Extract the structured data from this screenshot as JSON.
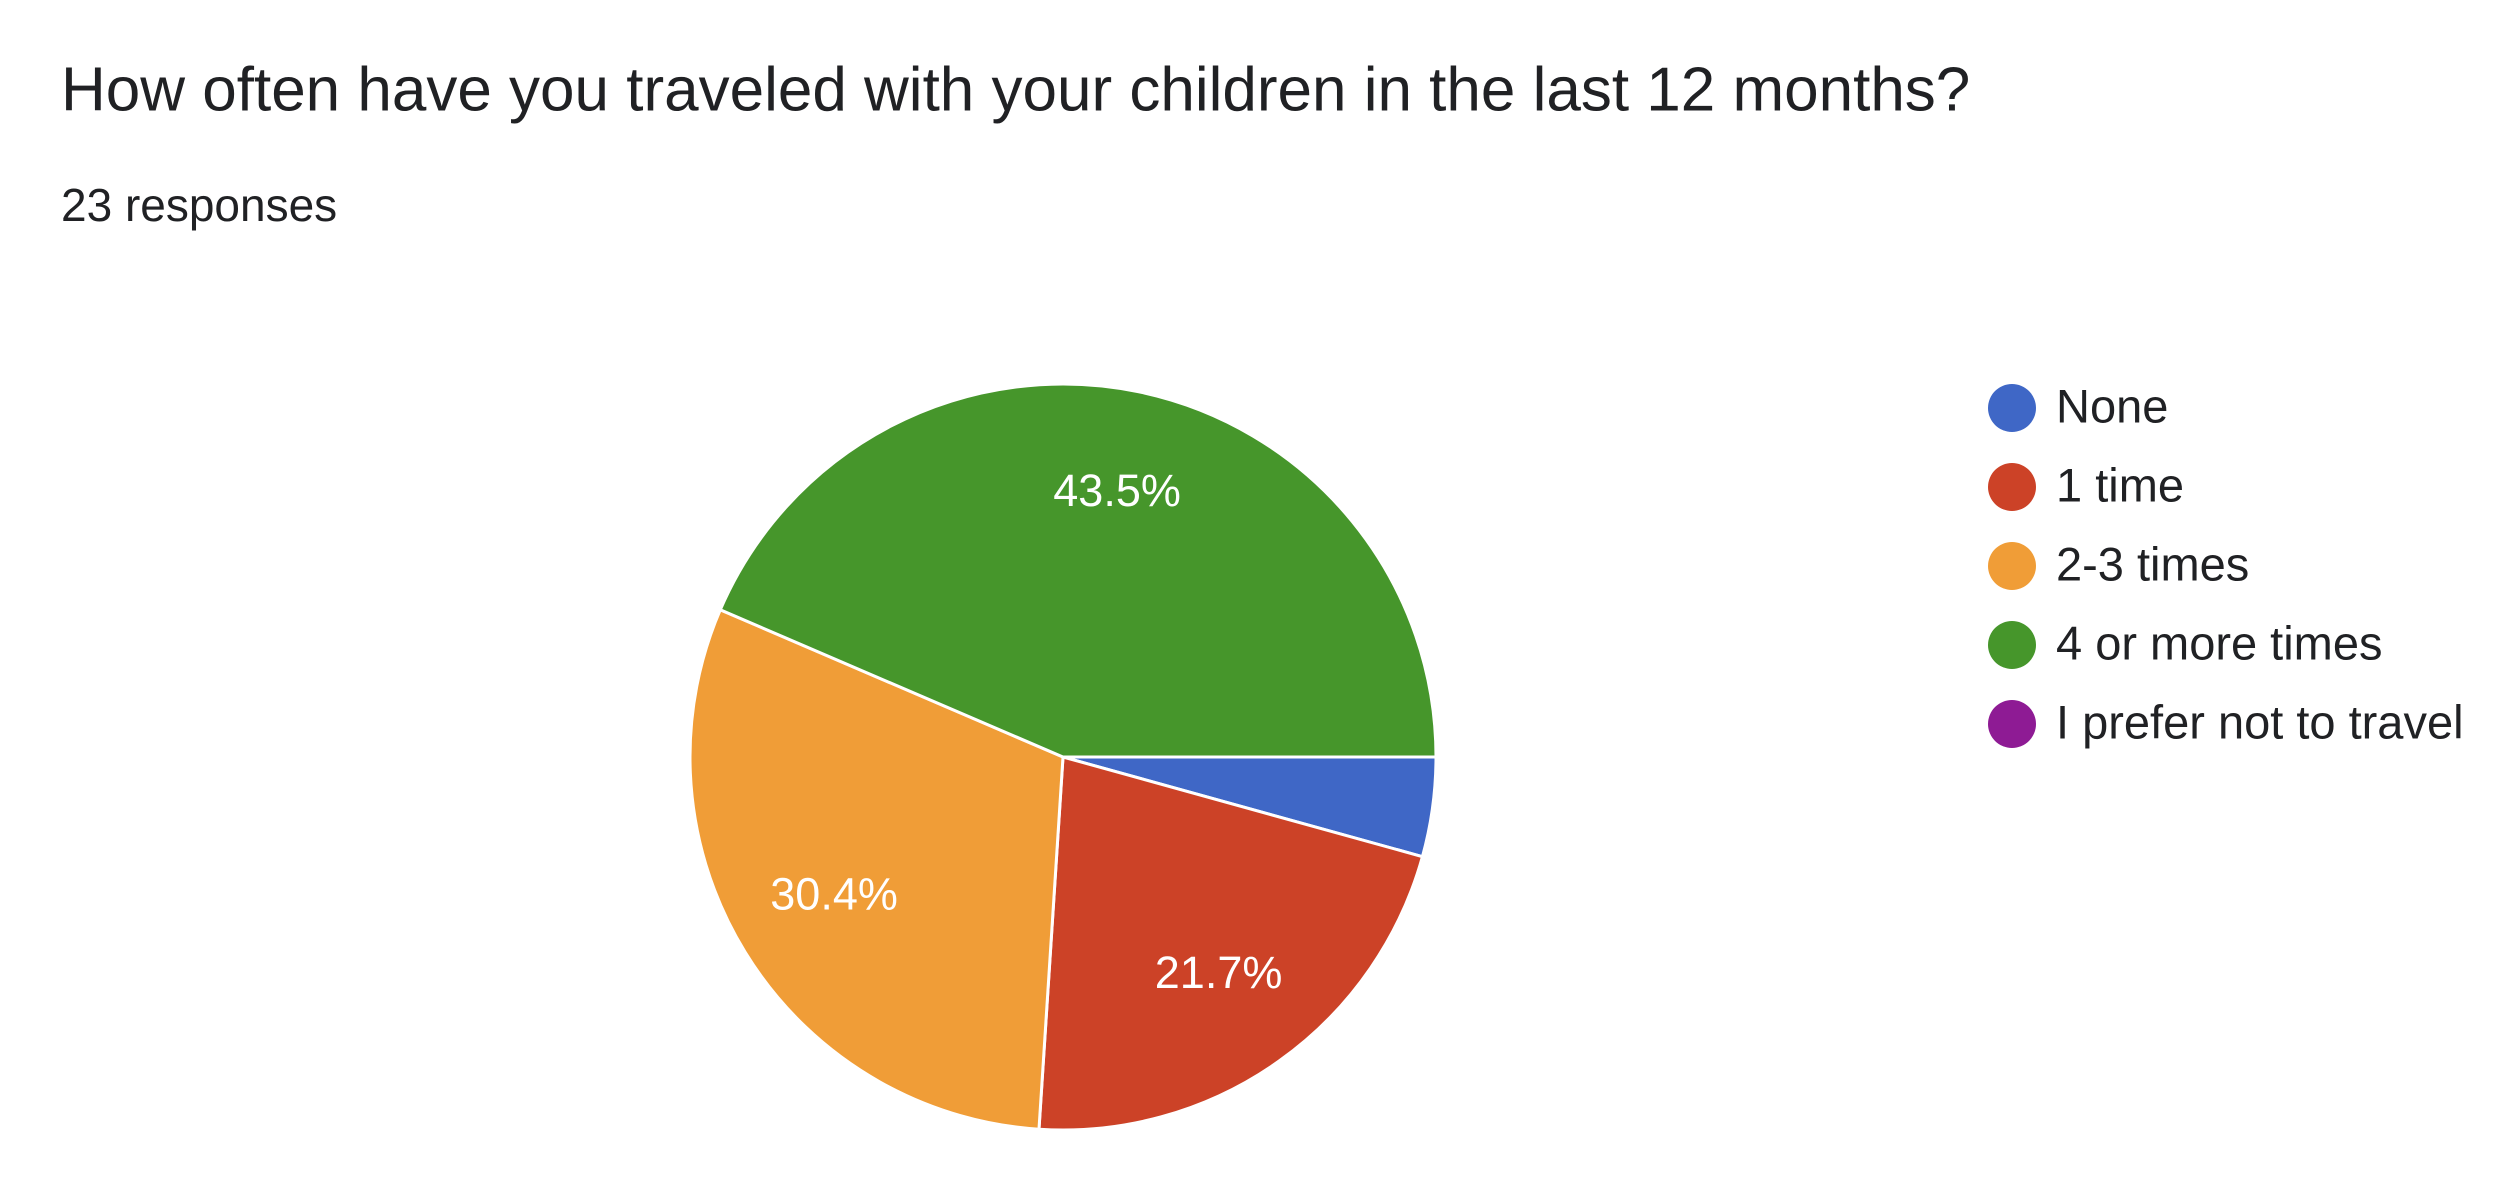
{
  "chart_data": {
    "type": "pie",
    "title": "How often have you traveled with your children in the last 12 months?",
    "subtitle": "23 responses",
    "categories": [
      "None",
      "1 time",
      "2-3 times",
      "4 or more times",
      "I prefer not to travel"
    ],
    "values": [
      4.3,
      21.7,
      30.4,
      43.5,
      0
    ],
    "value_labels": [
      null,
      "21.7%",
      "30.4%",
      "43.5%",
      null
    ],
    "colors": [
      "#3f67c6",
      "#cc4227",
      "#f09d37",
      "#46962b",
      "#8e1b94"
    ],
    "legend": "right"
  }
}
